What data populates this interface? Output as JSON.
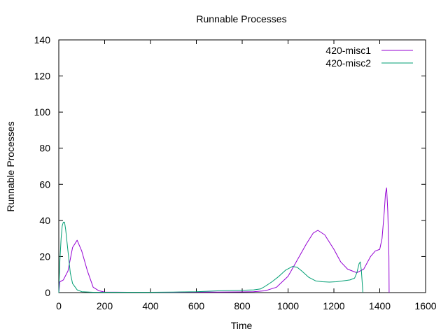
{
  "chart_data": {
    "type": "line",
    "title": "Runnable Processes",
    "xlabel": "Time",
    "ylabel": "Runnable Processes",
    "xlim": [
      0,
      1600
    ],
    "ylim": [
      0,
      140
    ],
    "x_ticks": [
      0,
      200,
      400,
      600,
      800,
      1000,
      1200,
      1400,
      1600
    ],
    "y_ticks": [
      0,
      20,
      40,
      60,
      80,
      100,
      120,
      140
    ],
    "grid": false,
    "legend_position": "top-right",
    "series": [
      {
        "name": "420-misc1",
        "color": "#9400d3",
        "x": [
          0,
          5,
          20,
          40,
          60,
          80,
          100,
          125,
          150,
          175,
          200,
          300,
          400,
          500,
          560,
          600,
          700,
          800,
          850,
          900,
          950,
          1000,
          1040,
          1080,
          1110,
          1130,
          1160,
          1200,
          1230,
          1260,
          1300,
          1330,
          1360,
          1380,
          1400,
          1410,
          1420,
          1425,
          1430,
          1435,
          1440,
          1441
        ],
        "y": [
          0,
          6,
          7,
          12,
          25,
          29,
          23,
          12,
          3,
          1,
          0.3,
          0.2,
          0.2,
          0.2,
          0.3,
          0.3,
          0.3,
          0.4,
          0.5,
          1,
          3,
          9,
          18,
          27,
          33,
          34.5,
          32,
          24,
          17,
          13,
          11,
          13,
          20,
          23,
          24,
          30,
          45,
          55,
          58,
          45,
          20,
          0
        ]
      },
      {
        "name": "420-misc2",
        "color": "#009e73",
        "x": [
          0,
          5,
          10,
          15,
          20,
          25,
          30,
          40,
          50,
          60,
          80,
          100,
          150,
          200,
          300,
          400,
          500,
          600,
          700,
          800,
          850,
          880,
          900,
          930,
          960,
          990,
          1020,
          1040,
          1060,
          1090,
          1120,
          1150,
          1180,
          1210,
          1240,
          1270,
          1290,
          1300,
          1310,
          1315,
          1320,
          1325,
          1326
        ],
        "y": [
          0,
          18,
          30,
          37,
          39,
          39,
          35,
          23,
          11,
          5,
          1.5,
          0.5,
          0.2,
          0.2,
          0.2,
          0.2,
          0.3,
          0.5,
          1,
          1.3,
          1.5,
          2,
          3.5,
          6,
          9,
          12.5,
          14.5,
          14,
          12,
          8.5,
          6.5,
          6,
          5.8,
          6,
          6.5,
          7,
          8,
          11,
          16,
          17,
          12,
          3,
          0
        ]
      }
    ]
  }
}
